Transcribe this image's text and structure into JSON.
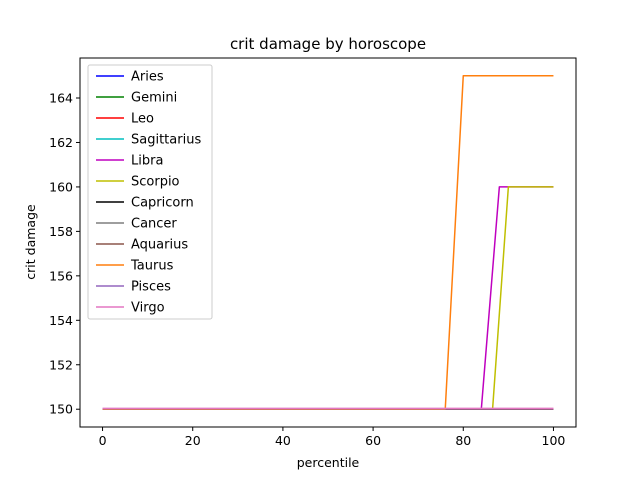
{
  "chart_data": {
    "type": "line",
    "title": "crit damage by horoscope",
    "xlabel": "percentile",
    "ylabel": "crit damage",
    "xlim": [
      -5,
      105
    ],
    "ylim": [
      149.2,
      165.8
    ],
    "xticks": [
      0,
      20,
      40,
      60,
      80,
      100
    ],
    "yticks": [
      150,
      152,
      154,
      156,
      158,
      160,
      162,
      164
    ],
    "grid": false,
    "legend_position": "upper left",
    "series": [
      {
        "name": "Aries",
        "color": "#0000ff",
        "x": [
          0,
          100
        ],
        "y": [
          150,
          150
        ]
      },
      {
        "name": "Gemini",
        "color": "#008000",
        "x": [
          0,
          100
        ],
        "y": [
          150,
          150
        ]
      },
      {
        "name": "Leo",
        "color": "#ff0000",
        "x": [
          0,
          100
        ],
        "y": [
          150,
          150
        ]
      },
      {
        "name": "Sagittarius",
        "color": "#00bfbf",
        "x": [
          0,
          100
        ],
        "y": [
          150,
          150
        ]
      },
      {
        "name": "Libra",
        "color": "#bf00bf",
        "x": [
          0,
          84,
          88,
          100
        ],
        "y": [
          150,
          150,
          160,
          160
        ]
      },
      {
        "name": "Scorpio",
        "color": "#bfbf00",
        "x": [
          0,
          86.5,
          90,
          100
        ],
        "y": [
          150,
          150,
          160,
          160
        ]
      },
      {
        "name": "Capricorn",
        "color": "#000000",
        "x": [
          0,
          100
        ],
        "y": [
          150,
          150
        ]
      },
      {
        "name": "Cancer",
        "color": "#7f7f7f",
        "x": [
          0,
          100
        ],
        "y": [
          150,
          150
        ]
      },
      {
        "name": "Aquarius",
        "color": "#8c564b",
        "x": [
          0,
          100
        ],
        "y": [
          150,
          150
        ]
      },
      {
        "name": "Taurus",
        "color": "#ff7f0e",
        "x": [
          0,
          76,
          80,
          100
        ],
        "y": [
          150,
          150,
          165,
          165
        ]
      },
      {
        "name": "Pisces",
        "color": "#9467bd",
        "x": [
          0,
          100
        ],
        "y": [
          150.02,
          150.02
        ]
      },
      {
        "name": "Virgo",
        "color": "#e377c2",
        "x": [
          0,
          100
        ],
        "y": [
          150.04,
          150.04
        ]
      }
    ]
  }
}
